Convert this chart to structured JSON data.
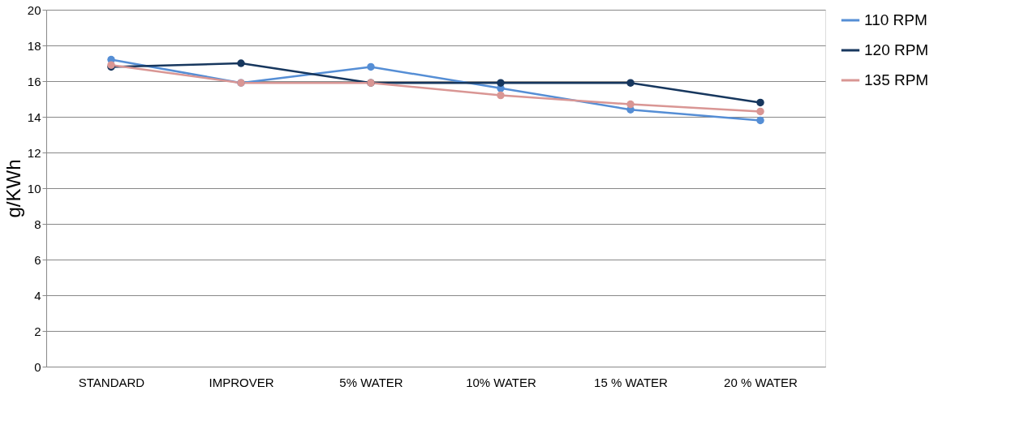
{
  "chart_data": {
    "type": "line",
    "ylabel": "g/KWh",
    "categories": [
      "STANDARD",
      "IMPROVER",
      "5% WATER",
      "10% WATER",
      "15 % WATER",
      "20 % WATER"
    ],
    "series": [
      {
        "name": "110 RPM",
        "color": "#558ed5",
        "values": [
          17.2,
          15.9,
          16.8,
          15.6,
          14.4,
          13.8
        ]
      },
      {
        "name": "120 RPM",
        "color": "#17375e",
        "values": [
          16.8,
          17.0,
          15.9,
          15.9,
          15.9,
          14.8
        ]
      },
      {
        "name": "135 RPM",
        "color": "#d99694",
        "values": [
          16.9,
          15.9,
          15.9,
          15.2,
          14.7,
          14.3
        ]
      }
    ],
    "ylim": [
      0,
      20
    ],
    "yticks": [
      0,
      2,
      4,
      6,
      8,
      10,
      12,
      14,
      16,
      18,
      20
    ],
    "grid": "y",
    "legend": "right",
    "marker": "circle",
    "line_style": "solid"
  }
}
